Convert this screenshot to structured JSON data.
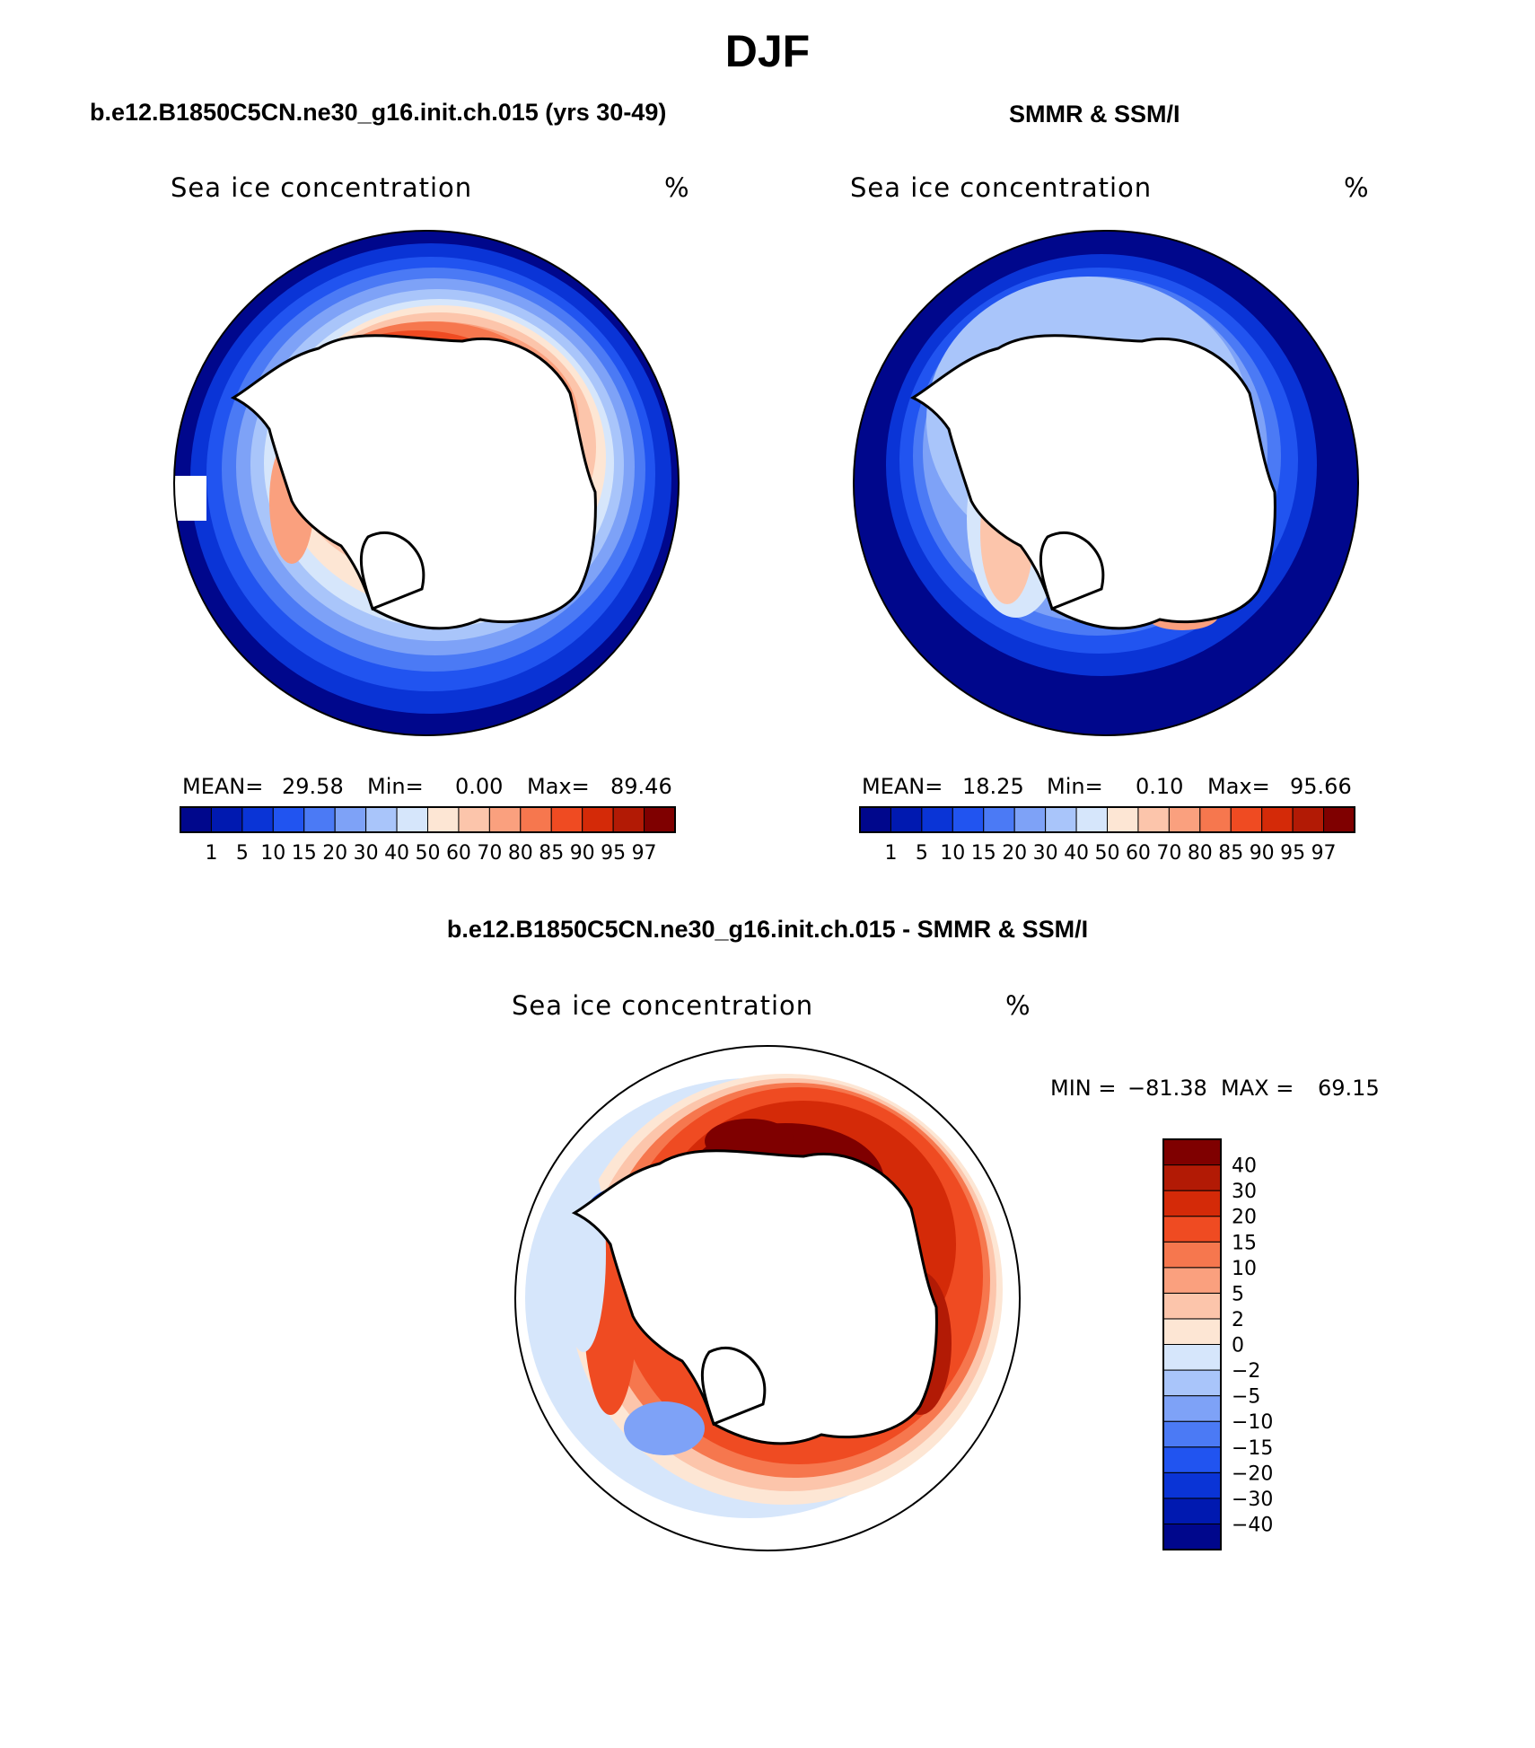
{
  "figure": {
    "title": "DJF"
  },
  "panels": [
    {
      "heading": "b.e12.B1850C5CN.ne30_g16.init.ch.015 (yrs 30-49)",
      "variable": "Sea ice concentration",
      "units": "%",
      "stats": {
        "mean_label": "MEAN=",
        "mean": "29.58",
        "min_label": "Min=",
        "min": "0.00",
        "max_label": "Max=",
        "max": "89.46"
      }
    },
    {
      "heading": "SMMR & SSM/I",
      "variable": "Sea ice concentration",
      "units": "%",
      "stats": {
        "mean_label": "MEAN=",
        "mean": "18.25",
        "min_label": "Min=",
        "min": "0.10",
        "max_label": "Max=",
        "max": "95.66"
      }
    },
    {
      "heading": "b.e12.B1850C5CN.ne30_g16.init.ch.015 - SMMR & SSM/I",
      "variable": "Sea ice concentration",
      "units": "%",
      "minmax": {
        "min_label": "MIN =",
        "min": "−81.38",
        "max_label": "MAX =",
        "max": "69.15"
      }
    }
  ],
  "colorbars": {
    "concentration": {
      "labels": [
        "1",
        "5",
        "10",
        "15",
        "20",
        "30",
        "40",
        "50",
        "60",
        "70",
        "80",
        "85",
        "90",
        "95",
        "97"
      ],
      "colors": [
        "#00078c",
        "#0019b0",
        "#0a34d6",
        "#2154f0",
        "#4b7af5",
        "#7ea2f7",
        "#a9c5fa",
        "#d6e6fb",
        "#fde6d4",
        "#fcc5ab",
        "#faa07e",
        "#f6774e",
        "#ef4b22",
        "#d42a08",
        "#b21a05",
        "#7f0000"
      ]
    },
    "difference": {
      "labels": [
        "−40",
        "−30",
        "−20",
        "−15",
        "−10",
        "−5",
        "−2",
        "0",
        "2",
        "5",
        "10",
        "15",
        "20",
        "30",
        "40"
      ],
      "colors": [
        "#00078c",
        "#0019b0",
        "#0a34d6",
        "#2154f0",
        "#4b7af5",
        "#7ea2f7",
        "#a9c5fa",
        "#d6e6fb",
        "#fde6d4",
        "#fcc5ab",
        "#faa07e",
        "#f6774e",
        "#ef4b22",
        "#d42a08",
        "#b21a05",
        "#7f0000"
      ]
    }
  }
}
